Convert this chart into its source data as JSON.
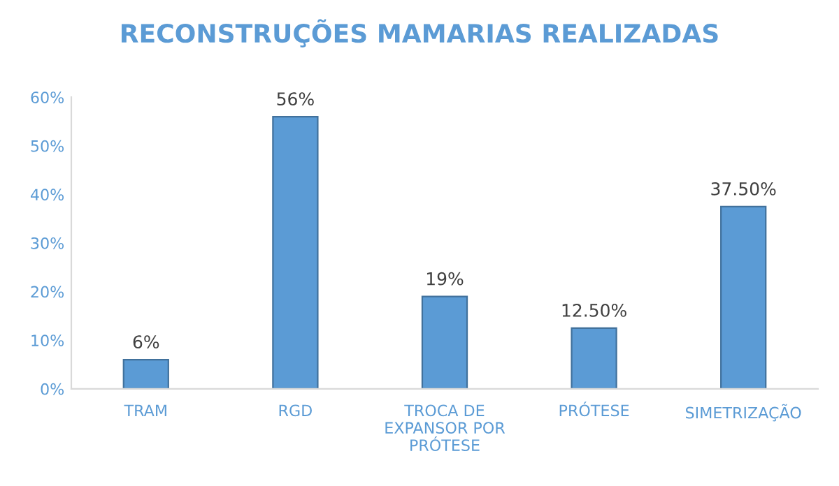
{
  "chart_data": {
    "type": "bar",
    "title": "RECONSTRUÇÕES MAMARIAS REALIZADAS",
    "categories": [
      "TRAM",
      "RGD",
      "TROCA DE\nEXPANSOR POR\nPRÓTESE",
      "PRÓTESE",
      "SIMETRIZAÇÃO"
    ],
    "values": [
      6,
      56,
      19,
      12.5,
      37.5
    ],
    "value_labels": [
      "6%",
      "56%",
      "19%",
      "12.50%",
      "37.50%"
    ],
    "color": "#5b9bd5",
    "ylim": [
      0,
      60
    ],
    "yticks": [
      {
        "value": 0,
        "label": "0%"
      },
      {
        "value": 10,
        "label": "10%"
      },
      {
        "value": 20,
        "label": "20%"
      },
      {
        "value": 30,
        "label": "30%"
      },
      {
        "value": 40,
        "label": "40%"
      },
      {
        "value": 50,
        "label": "50%"
      },
      {
        "value": 60,
        "label": "60%"
      }
    ],
    "grid": false,
    "legend": false
  }
}
